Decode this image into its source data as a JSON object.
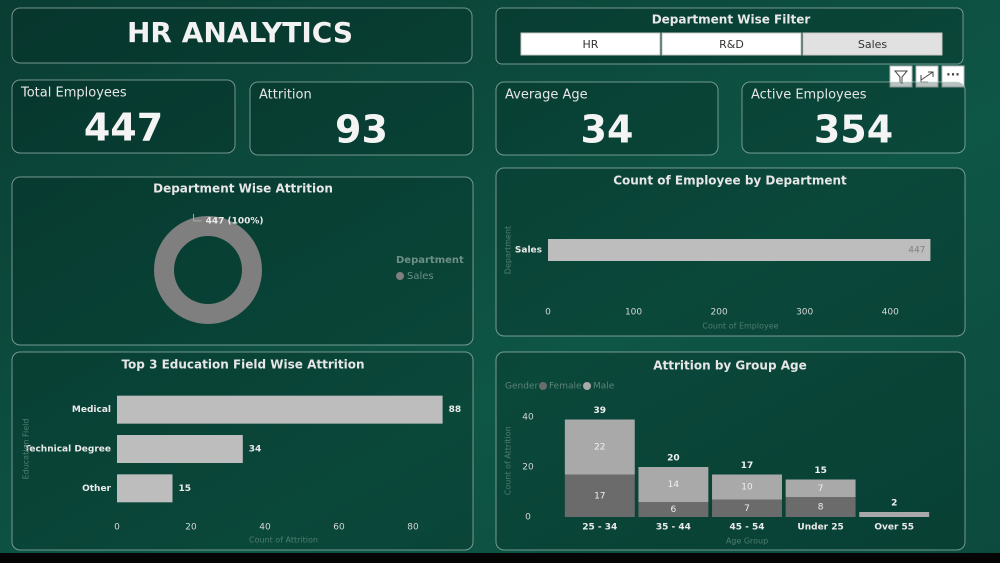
{
  "header": {
    "title": "HR ANALYTICS"
  },
  "filter": {
    "title": "Department Wise Filter",
    "options": [
      "HR",
      "R&D",
      "Sales"
    ],
    "selected": "Sales"
  },
  "kpis": [
    {
      "label": "Total Employees",
      "value": 447
    },
    {
      "label": "Attrition",
      "value": 93
    },
    {
      "label": "Average Age",
      "value": 34
    },
    {
      "label": "Active Employees",
      "value": 354
    }
  ],
  "chart_data": [
    {
      "type": "pie",
      "donut": true,
      "title": "Department Wise Attrition",
      "legend_title": "Department",
      "categories": [
        "Sales"
      ],
      "values": [
        447
      ],
      "value_labels": [
        "447 (100%)"
      ],
      "colors": [
        "#7f7f7f"
      ]
    },
    {
      "type": "hbar",
      "title": "Count of Employee by Department",
      "categories": [
        "Sales"
      ],
      "values": [
        447
      ],
      "xlim": [
        0,
        450
      ],
      "xticks": [
        0,
        100,
        200,
        300,
        400
      ],
      "x_label": "Count of Employee",
      "y_label": "Department",
      "color": "#bdbdbd",
      "label_inside": true
    },
    {
      "type": "hbar",
      "title": "Top 3 Education Field Wise Attrition",
      "categories": [
        "Medical",
        "Technical Degree",
        "Other"
      ],
      "values": [
        88,
        34,
        15
      ],
      "xlim": [
        0,
        90
      ],
      "xticks": [
        0,
        20,
        40,
        60,
        80
      ],
      "x_label": "Count of Attrition",
      "y_label": "Education Field",
      "color": "#bdbdbd",
      "label_inside": false
    },
    {
      "type": "stacked_bar",
      "title": "Attrition by Group Age",
      "legend_title": "Gender",
      "categories": [
        "25 - 34",
        "35 - 44",
        "45 - 54",
        "Under 25",
        "Over 55"
      ],
      "series": [
        {
          "name": "Female",
          "color": "#6b6b6b",
          "values": [
            17,
            6,
            7,
            8,
            0
          ]
        },
        {
          "name": "Male",
          "color": "#a9a9a9",
          "values": [
            22,
            14,
            10,
            7,
            2
          ]
        }
      ],
      "totals": [
        39,
        20,
        17,
        15,
        2
      ],
      "ylim": [
        0,
        45
      ],
      "yticks": [
        0,
        20,
        40
      ],
      "y_label": "Count of Attrition",
      "x_label": "Age Group"
    }
  ]
}
